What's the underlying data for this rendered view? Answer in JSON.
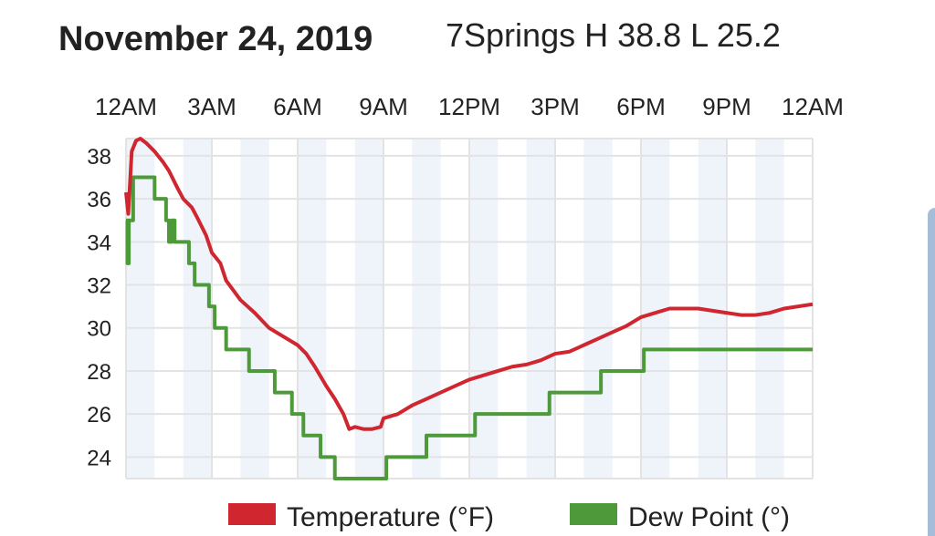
{
  "header": {
    "title": "November 24, 2019",
    "subtitle": "7Springs H 38.8 L 25.2"
  },
  "chart_data": {
    "type": "line",
    "title": "November 24, 2019",
    "subtitle": "7Springs H 38.8 L 25.2",
    "x_unit": "hours since midnight",
    "xlim": [
      0,
      24
    ],
    "ylim": [
      23,
      38.8
    ],
    "x_ticks": [
      0,
      3,
      6,
      9,
      12,
      15,
      18,
      21,
      24
    ],
    "x_tick_labels": [
      "12AM",
      "3AM",
      "6AM",
      "9AM",
      "12PM",
      "3PM",
      "6PM",
      "9PM",
      "12AM"
    ],
    "y_ticks": [
      24,
      26,
      28,
      30,
      32,
      34,
      36,
      38
    ],
    "y_tick_labels": [
      "24",
      "26",
      "28",
      "30",
      "32",
      "34",
      "36",
      "38"
    ],
    "grid": true,
    "shaded_hours": [
      [
        0,
        1
      ],
      [
        2,
        3
      ],
      [
        4,
        5
      ],
      [
        6,
        7
      ],
      [
        8,
        9
      ],
      [
        10,
        11
      ],
      [
        12,
        13
      ],
      [
        14,
        15
      ],
      [
        16,
        17
      ],
      [
        18,
        19
      ],
      [
        20,
        21
      ],
      [
        22,
        23
      ]
    ],
    "legend_position": "bottom",
    "series": [
      {
        "name": "Temperature (°F)",
        "color": "#d0262f",
        "x": [
          0,
          0.08,
          0.2,
          0.35,
          0.5,
          0.7,
          1,
          1.3,
          1.5,
          1.8,
          2,
          2.3,
          2.5,
          2.8,
          3,
          3.3,
          3.5,
          4,
          4.5,
          5,
          5.5,
          6,
          6.3,
          6.6,
          7,
          7.3,
          7.6,
          7.8,
          8,
          8.3,
          8.6,
          8.9,
          9,
          9.5,
          10,
          10.5,
          11,
          11.5,
          12,
          12.5,
          13,
          13.5,
          14,
          14.5,
          15,
          15.5,
          16,
          16.5,
          17,
          17.5,
          18,
          18.5,
          19,
          19.5,
          20,
          20.5,
          21,
          21.5,
          22,
          22.5,
          23,
          23.5,
          24
        ],
        "y": [
          36.3,
          35.3,
          38.2,
          38.7,
          38.8,
          38.6,
          38.2,
          37.7,
          37.3,
          36.5,
          36,
          35.6,
          35.1,
          34.3,
          33.5,
          33,
          32.2,
          31.3,
          30.7,
          30,
          29.6,
          29.2,
          28.8,
          28.2,
          27.3,
          26.7,
          26,
          25.3,
          25.4,
          25.3,
          25.3,
          25.4,
          25.8,
          26,
          26.4,
          26.7,
          27,
          27.3,
          27.6,
          27.8,
          28,
          28.2,
          28.3,
          28.5,
          28.8,
          28.9,
          29.2,
          29.5,
          29.8,
          30.1,
          30.5,
          30.7,
          30.9,
          30.9,
          30.9,
          30.8,
          30.7,
          30.6,
          30.6,
          30.7,
          30.9,
          31,
          31.1
        ]
      },
      {
        "name": "Dew Point (°)",
        "color": "#4e9a3a",
        "x": [
          0,
          0.05,
          0.1,
          0.15,
          0.25,
          1,
          1.4,
          1.5,
          1.6,
          1.7,
          1.8,
          2.2,
          2.4,
          2.9,
          3.1,
          3.5,
          4.3,
          5.2,
          5.8,
          6.2,
          6.8,
          7.3,
          7.8,
          9.1,
          10.5,
          12.2,
          14.8,
          16.6,
          18.1,
          24
        ],
        "y": [
          35,
          33,
          35,
          35,
          37,
          36,
          35,
          34,
          35,
          34,
          34,
          33,
          32,
          31,
          30,
          29,
          28,
          27,
          26,
          25,
          24,
          23,
          23,
          24,
          25,
          26,
          27,
          28,
          29,
          29
        ],
        "step": true
      }
    ]
  }
}
